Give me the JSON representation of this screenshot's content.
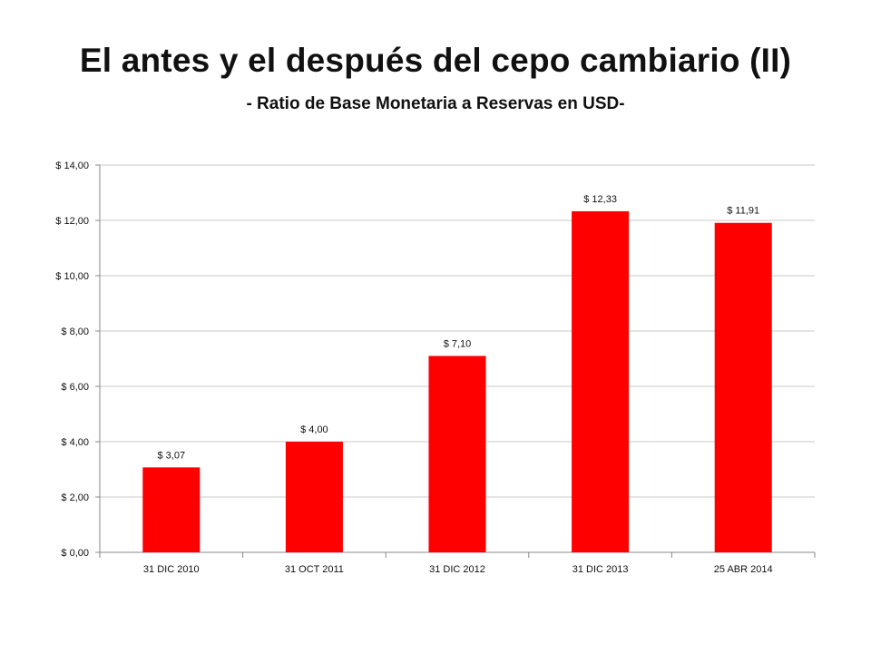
{
  "title": "El antes y el después del cepo cambiario (II)",
  "subtitle": "- Ratio de Base Monetaria a Reservas en USD-",
  "chart_data": {
    "type": "bar",
    "title": "",
    "xlabel": "",
    "ylabel": "",
    "categories": [
      "31 DIC 2010",
      "31 OCT 2011",
      "31 DIC 2012",
      "31 DIC 2013",
      "25 ABR 2014"
    ],
    "values": [
      3.07,
      4.0,
      7.1,
      12.33,
      11.91
    ],
    "data_labels": [
      "$ 3,07",
      "$ 4,00",
      "$ 7,10",
      "$ 12,33",
      "$ 11,91"
    ],
    "ylim": [
      0,
      14
    ],
    "yticks": [
      0,
      2,
      4,
      6,
      8,
      10,
      12,
      14
    ],
    "ytick_labels": [
      "$ 0,00",
      "$ 2,00",
      "$ 4,00",
      "$ 6,00",
      "$ 8,00",
      "$ 10,00",
      "$ 12,00",
      "$ 14,00"
    ],
    "bar_color": "#FF0000",
    "grid": true,
    "legend": "none"
  }
}
